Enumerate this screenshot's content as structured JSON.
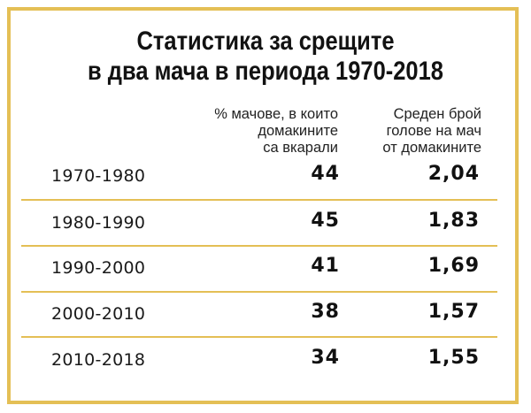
{
  "chart_data": {
    "type": "table",
    "title_line1": "Статистика за срещите",
    "title_line2": "в два мача в периода 1970-2018",
    "columns": [
      "% мачове, в които\nдомакините\nса вкарали",
      "Среден брой\nголове на мач\nот домакините"
    ],
    "rows": [
      {
        "period": "1970-1980",
        "pct": "44",
        "avg": "2,04"
      },
      {
        "period": "1980-1990",
        "pct": "45",
        "avg": "1,83"
      },
      {
        "period": "1990-2000",
        "pct": "41",
        "avg": "1,69"
      },
      {
        "period": "2000-2010",
        "pct": "38",
        "avg": "1,57"
      },
      {
        "period": "2010-2018",
        "pct": "34",
        "avg": "1,55"
      }
    ]
  },
  "colors": {
    "border": "#e4bf55",
    "text": "#111111"
  }
}
